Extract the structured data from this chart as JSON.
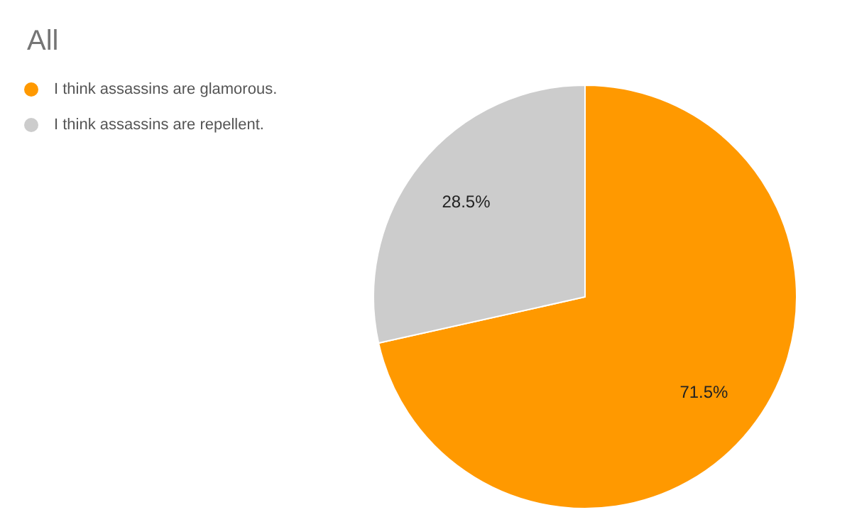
{
  "chart_data": {
    "type": "pie",
    "title": "All",
    "categories": [
      "I think assassins are glamorous.",
      "I think assassins are repellent."
    ],
    "values": [
      71.5,
      28.5
    ],
    "colors": [
      "#ff9900",
      "#cccccc"
    ],
    "value_labels": [
      "71.5%",
      "28.5%"
    ],
    "legend": "top left"
  }
}
